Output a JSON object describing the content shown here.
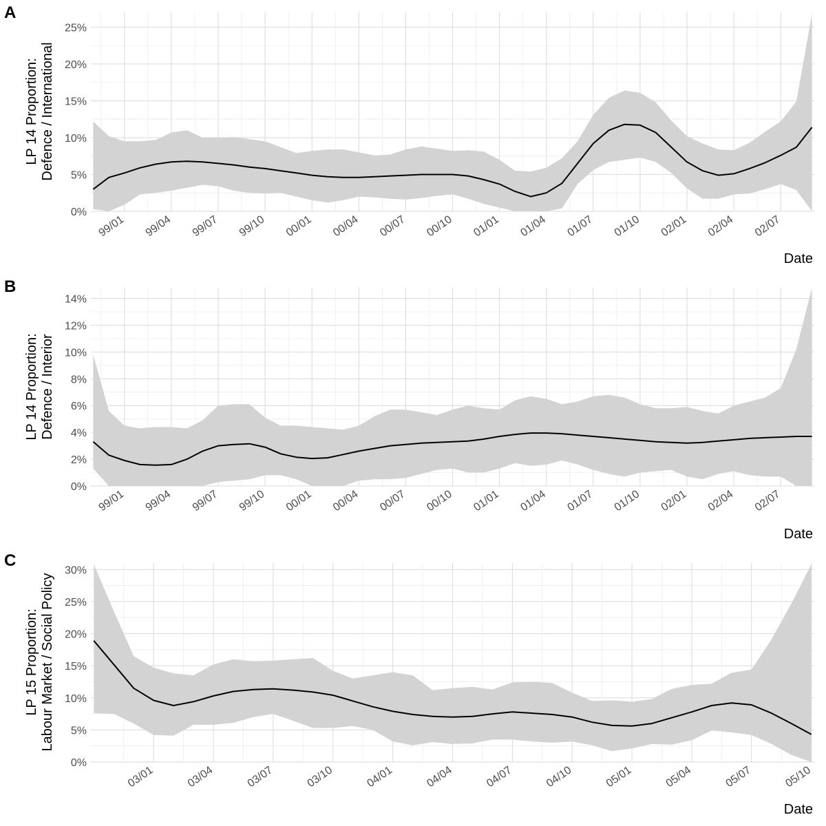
{
  "chart_data": [
    {
      "type": "area",
      "panel_label": "A",
      "ylabel": [
        "LP 14 Proportion:",
        "Defence / International"
      ],
      "xlabel": "Date",
      "x_tick_labels": [
        "99/01",
        "99/04",
        "99/07",
        "99/10",
        "00/01",
        "00/04",
        "00/07",
        "00/10",
        "01/01",
        "01/04",
        "01/07",
        "01/10",
        "02/01",
        "02/04",
        "02/07"
      ],
      "y_tick_labels": [
        "0%",
        "5%",
        "10%",
        "15%",
        "20%",
        "25%"
      ],
      "y_ticks": [
        0,
        5,
        10,
        15,
        20,
        25
      ],
      "ylim": [
        0,
        27
      ],
      "grid": true,
      "series": [
        {
          "x": [
            "98/11",
            "98/12",
            "99/01",
            "99/02",
            "99/03",
            "99/04",
            "99/05",
            "99/06",
            "99/07",
            "99/08",
            "99/09",
            "99/10",
            "99/11",
            "99/12",
            "00/01",
            "00/02",
            "00/03",
            "00/04",
            "00/05",
            "00/06",
            "00/07",
            "00/08",
            "00/09",
            "00/10",
            "00/11",
            "00/12",
            "01/01",
            "01/02",
            "01/03",
            "01/04",
            "01/05",
            "01/06",
            "01/07",
            "01/08",
            "01/09",
            "01/10",
            "01/11",
            "01/12",
            "02/01",
            "02/02",
            "02/03",
            "02/04",
            "02/05",
            "02/06",
            "02/07",
            "02/08",
            "02/09"
          ],
          "y": [
            3.0,
            4.6,
            5.2,
            5.9,
            6.4,
            6.7,
            6.8,
            6.7,
            6.5,
            6.3,
            6.0,
            5.8,
            5.5,
            5.2,
            4.9,
            4.7,
            4.6,
            4.6,
            4.7,
            4.8,
            4.9,
            5.0,
            5.0,
            5.0,
            4.8,
            4.3,
            3.7,
            2.7,
            2.0,
            2.5,
            3.8,
            6.5,
            9.2,
            11.0,
            11.8,
            11.7,
            10.7,
            8.7,
            6.7,
            5.5,
            4.9,
            5.1,
            5.8,
            6.6,
            7.6,
            8.7,
            11.4
          ],
          "lower": [
            0.3,
            0.0,
            0.9,
            2.3,
            2.5,
            2.8,
            3.2,
            3.6,
            3.4,
            2.8,
            2.5,
            2.4,
            2.5,
            2.0,
            1.5,
            1.2,
            1.5,
            2.0,
            1.9,
            1.7,
            1.6,
            1.8,
            2.1,
            2.3,
            1.7,
            1.0,
            0.5,
            0.0,
            0.0,
            0.0,
            0.4,
            3.7,
            5.6,
            6.7,
            7.0,
            7.3,
            6.7,
            5.2,
            3.1,
            1.7,
            1.7,
            2.3,
            2.4,
            3.0,
            3.7,
            2.9,
            0.0
          ],
          "upper": [
            12.2,
            10.2,
            9.5,
            9.5,
            9.7,
            10.7,
            11.0,
            10.0,
            10.0,
            10.1,
            9.8,
            9.5,
            8.7,
            7.9,
            8.2,
            8.4,
            8.4,
            8.0,
            7.6,
            7.7,
            8.4,
            8.8,
            8.5,
            8.2,
            8.3,
            8.1,
            7.0,
            5.5,
            5.4,
            5.9,
            7.2,
            9.5,
            13.1,
            15.4,
            16.4,
            16.1,
            14.8,
            12.3,
            10.2,
            9.2,
            8.4,
            8.3,
            9.3,
            10.8,
            12.2,
            14.9,
            26.8
          ]
        }
      ]
    },
    {
      "type": "area",
      "panel_label": "B",
      "ylabel": [
        "LP 14 Proportion:",
        "Defence / Interior"
      ],
      "xlabel": "Date",
      "x_tick_labels": [
        "99/01",
        "99/04",
        "99/07",
        "99/10",
        "00/01",
        "00/04",
        "00/07",
        "00/10",
        "01/01",
        "01/04",
        "01/07",
        "01/10",
        "02/01",
        "02/04",
        "02/07"
      ],
      "y_tick_labels": [
        "0%",
        "2%",
        "4%",
        "6%",
        "8%",
        "10%",
        "12%",
        "14%"
      ],
      "y_ticks": [
        0,
        2,
        4,
        6,
        8,
        10,
        12,
        14
      ],
      "ylim": [
        0,
        14.8
      ],
      "grid": true,
      "series": [
        {
          "x": [
            "98/11",
            "98/12",
            "99/01",
            "99/02",
            "99/03",
            "99/04",
            "99/05",
            "99/06",
            "99/07",
            "99/08",
            "99/09",
            "99/10",
            "99/11",
            "99/12",
            "00/01",
            "00/02",
            "00/03",
            "00/04",
            "00/05",
            "00/06",
            "00/07",
            "00/08",
            "00/09",
            "00/10",
            "00/11",
            "00/12",
            "01/01",
            "01/02",
            "01/03",
            "01/04",
            "01/05",
            "01/06",
            "01/07",
            "01/08",
            "01/09",
            "01/10",
            "01/11",
            "01/12",
            "02/01",
            "02/02",
            "02/03",
            "02/04",
            "02/05",
            "02/06",
            "02/07",
            "02/08",
            "02/09"
          ],
          "y": [
            3.3,
            2.3,
            1.9,
            1.6,
            1.55,
            1.6,
            2.0,
            2.6,
            3.0,
            3.1,
            3.15,
            2.9,
            2.4,
            2.15,
            2.05,
            2.1,
            2.35,
            2.6,
            2.8,
            3.0,
            3.1,
            3.2,
            3.25,
            3.3,
            3.35,
            3.5,
            3.7,
            3.85,
            3.95,
            3.95,
            3.9,
            3.8,
            3.7,
            3.6,
            3.5,
            3.4,
            3.3,
            3.25,
            3.2,
            3.25,
            3.35,
            3.45,
            3.55,
            3.6,
            3.65,
            3.7,
            3.7
          ],
          "lower": [
            1.3,
            0.0,
            0.0,
            0.0,
            0.0,
            0.0,
            0.0,
            0.0,
            0.3,
            0.4,
            0.5,
            0.8,
            0.8,
            0.5,
            0.0,
            0.0,
            0.0,
            0.4,
            0.5,
            0.5,
            0.6,
            0.9,
            1.2,
            1.3,
            1.0,
            1.0,
            1.3,
            1.7,
            1.5,
            1.6,
            1.9,
            1.6,
            1.2,
            0.9,
            0.7,
            1.0,
            1.1,
            1.2,
            0.7,
            0.5,
            0.9,
            1.1,
            0.8,
            0.7,
            0.7,
            0.0,
            0.0
          ],
          "upper": [
            9.8,
            5.6,
            4.5,
            4.3,
            4.4,
            4.4,
            4.3,
            4.9,
            6.0,
            6.1,
            6.1,
            5.1,
            4.5,
            4.5,
            4.4,
            4.3,
            4.2,
            4.5,
            5.2,
            5.7,
            5.7,
            5.5,
            5.3,
            5.7,
            6.0,
            5.8,
            5.7,
            6.4,
            6.7,
            6.5,
            6.1,
            6.3,
            6.7,
            6.8,
            6.6,
            6.1,
            5.8,
            5.8,
            5.9,
            5.6,
            5.4,
            6.0,
            6.3,
            6.6,
            7.3,
            10.2,
            14.8
          ]
        }
      ]
    },
    {
      "type": "area",
      "panel_label": "C",
      "ylabel": [
        "LP 15 Proportion:",
        "Labour Market / Social Policy"
      ],
      "xlabel": "Date",
      "x_tick_labels": [
        "03/01",
        "03/04",
        "03/07",
        "03/10",
        "04/01",
        "04/04",
        "04/07",
        "04/10",
        "05/01",
        "05/04",
        "05/07",
        "05/10"
      ],
      "y_tick_labels": [
        "0%",
        "5%",
        "10%",
        "15%",
        "20%",
        "25%",
        "30%"
      ],
      "y_ticks": [
        0,
        5,
        10,
        15,
        20,
        25,
        30
      ],
      "ylim": [
        0,
        31
      ],
      "grid": true,
      "series": [
        {
          "x": [
            "02/10",
            "02/11",
            "02/12",
            "03/01",
            "03/02",
            "03/03",
            "03/04",
            "03/05",
            "03/06",
            "03/07",
            "03/08",
            "03/09",
            "03/10",
            "03/11",
            "03/12",
            "04/01",
            "04/02",
            "04/03",
            "04/04",
            "04/05",
            "04/06",
            "04/07",
            "04/08",
            "04/09",
            "04/10",
            "04/11",
            "04/12",
            "05/01",
            "05/02",
            "05/03",
            "05/04",
            "05/05",
            "05/06",
            "05/07",
            "05/08",
            "05/09",
            "05/10"
          ],
          "y": [
            18.9,
            15.2,
            11.5,
            9.6,
            8.8,
            9.4,
            10.3,
            11.0,
            11.3,
            11.4,
            11.2,
            10.9,
            10.4,
            9.5,
            8.6,
            7.9,
            7.4,
            7.1,
            7.0,
            7.1,
            7.5,
            7.8,
            7.6,
            7.4,
            7.0,
            6.2,
            5.7,
            5.6,
            6.0,
            6.9,
            7.8,
            8.8,
            9.2,
            8.9,
            7.6,
            6.0,
            4.3
          ],
          "lower": [
            7.6,
            7.5,
            6.0,
            4.2,
            4.1,
            5.8,
            5.8,
            6.1,
            7.0,
            7.5,
            6.4,
            5.3,
            5.3,
            5.6,
            5.0,
            3.2,
            2.6,
            3.1,
            2.8,
            2.9,
            3.5,
            3.5,
            3.2,
            3.0,
            3.2,
            2.6,
            1.7,
            2.1,
            2.8,
            2.7,
            3.4,
            4.9,
            4.6,
            4.2,
            2.8,
            1.1,
            0.0
          ],
          "upper": [
            30.8,
            23.5,
            16.5,
            14.7,
            13.8,
            13.5,
            15.2,
            16.0,
            15.7,
            15.8,
            16.0,
            16.2,
            14.2,
            13.0,
            13.5,
            14.0,
            13.5,
            11.2,
            11.5,
            11.7,
            11.3,
            12.4,
            12.5,
            12.3,
            10.8,
            9.5,
            9.6,
            9.4,
            9.8,
            11.4,
            12.0,
            12.2,
            13.9,
            14.4,
            19.1,
            24.7,
            30.8
          ]
        }
      ]
    }
  ]
}
